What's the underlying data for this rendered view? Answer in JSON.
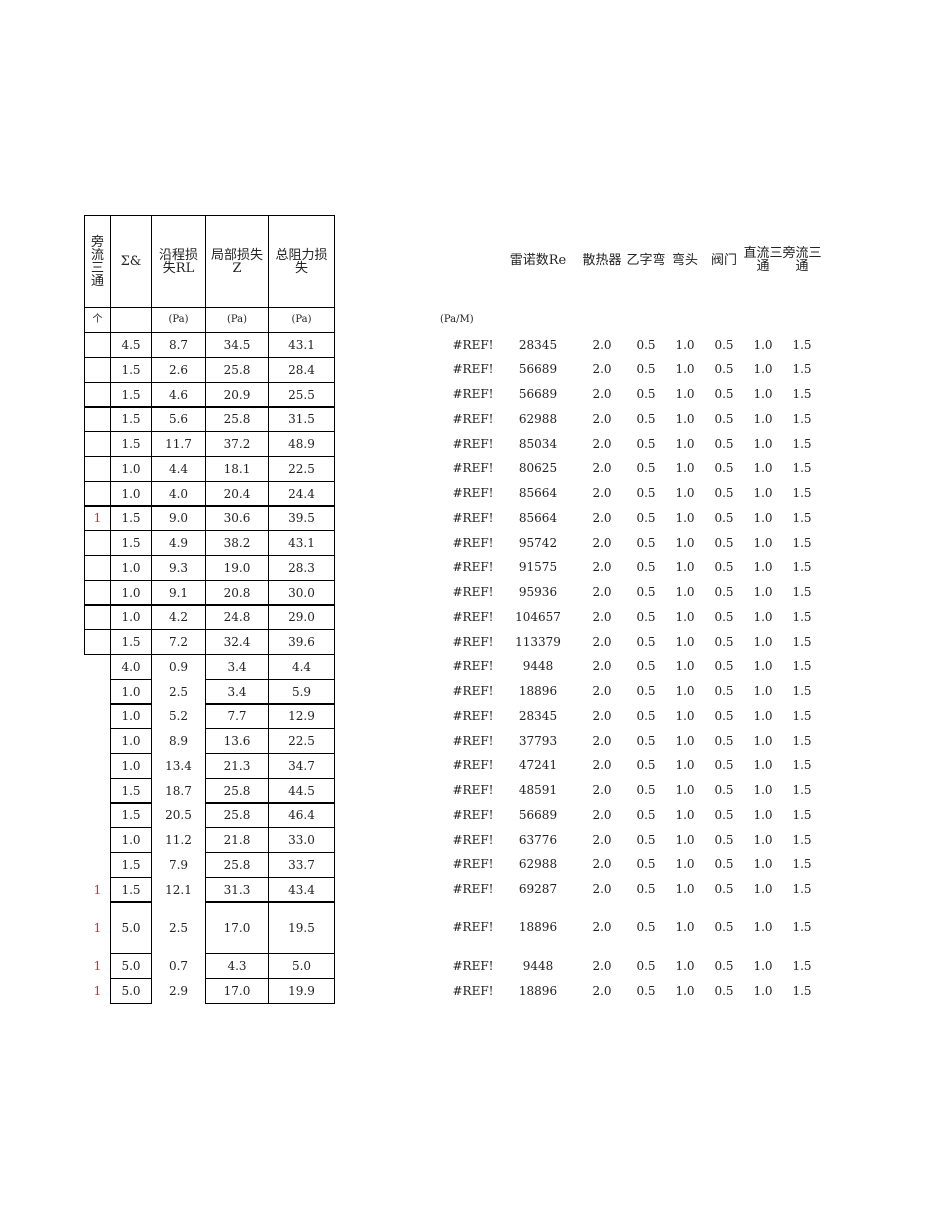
{
  "left_table": {
    "headers": [
      "旁流三通",
      "Σ&",
      "沿程损失RL",
      "局部损失Z",
      "总阻力损失"
    ],
    "units": [
      "个",
      "",
      "(Pa)",
      "(Pa)",
      "(Pa)"
    ],
    "rows": [
      [
        "",
        "4.5",
        "8.7",
        "34.5",
        "43.1"
      ],
      [
        "",
        "1.5",
        "2.6",
        "25.8",
        "28.4"
      ],
      [
        "",
        "1.5",
        "4.6",
        "20.9",
        "25.5"
      ],
      [
        "",
        "1.5",
        "5.6",
        "25.8",
        "31.5"
      ],
      [
        "",
        "1.5",
        "11.7",
        "37.2",
        "48.9"
      ],
      [
        "",
        "1.0",
        "4.4",
        "18.1",
        "22.5"
      ],
      [
        "",
        "1.0",
        "4.0",
        "20.4",
        "24.4"
      ],
      [
        "1",
        "1.5",
        "9.0",
        "30.6",
        "39.5"
      ],
      [
        "",
        "1.5",
        "4.9",
        "38.2",
        "43.1"
      ],
      [
        "",
        "1.0",
        "9.3",
        "19.0",
        "28.3"
      ],
      [
        "",
        "1.0",
        "9.1",
        "20.8",
        "30.0"
      ],
      [
        "",
        "1.0",
        "4.2",
        "24.8",
        "29.0"
      ],
      [
        "",
        "1.5",
        "7.2",
        "32.4",
        "39.6"
      ],
      [
        "",
        "4.0",
        "0.9",
        "3.4",
        "4.4"
      ],
      [
        "",
        "1.0",
        "2.5",
        "3.4",
        "5.9"
      ],
      [
        "",
        "1.0",
        "5.2",
        "7.7",
        "12.9"
      ],
      [
        "",
        "1.0",
        "8.9",
        "13.6",
        "22.5"
      ],
      [
        "",
        "1.0",
        "13.4",
        "21.3",
        "34.7"
      ],
      [
        "",
        "1.5",
        "18.7",
        "25.8",
        "44.5"
      ],
      [
        "",
        "1.5",
        "20.5",
        "25.8",
        "46.4"
      ],
      [
        "",
        "1.0",
        "11.2",
        "21.8",
        "33.0"
      ],
      [
        "",
        "1.5",
        "7.9",
        "25.8",
        "33.7"
      ],
      [
        "1",
        "1.5",
        "12.1",
        "31.3",
        "43.4"
      ],
      [
        "1",
        "5.0",
        "2.5",
        "17.0",
        "19.5"
      ],
      [
        "1",
        "5.0",
        "0.7",
        "4.3",
        "5.0"
      ],
      [
        "1",
        "5.0",
        "2.9",
        "17.0",
        "19.9"
      ]
    ]
  },
  "right_table": {
    "headers": [
      "",
      "雷诺数Re",
      "散热器",
      "乙字弯",
      "弯头",
      "阀门",
      "直流三通",
      "旁流三通"
    ],
    "units": [
      "(Pa/M)",
      "",
      "",
      "",
      "",
      "",
      "",
      ""
    ],
    "re_values": [
      "28345",
      "56689",
      "56689",
      "62988",
      "85034",
      "80625",
      "85664",
      "85664",
      "95742",
      "91575",
      "95936",
      "104657",
      "113379",
      "9448",
      "18896",
      "28345",
      "37793",
      "47241",
      "48591",
      "56689",
      "63776",
      "62988",
      "69287",
      "18896",
      "9448",
      "18896"
    ],
    "ref_text": "#REF!",
    "coefficients": [
      "2.0",
      "0.5",
      "1.0",
      "0.5",
      "1.0",
      "1.5"
    ]
  },
  "colors": {
    "red_marker": "#d0302a"
  }
}
